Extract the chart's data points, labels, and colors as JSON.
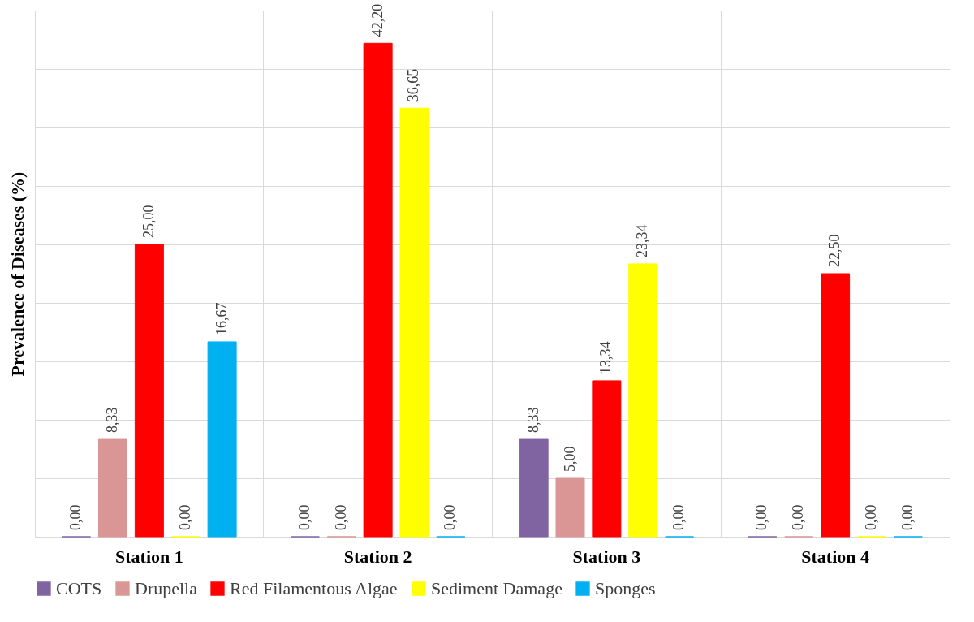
{
  "chart_data": {
    "type": "bar",
    "ylabel": "Prevalence of Diseases (%)",
    "categories": [
      "Station 1",
      "Station 2",
      "Station 3",
      "Station 4"
    ],
    "series": [
      {
        "name": "COTS",
        "color": "#8064a2",
        "values": [
          0,
          0,
          8.33,
          0
        ],
        "value_labels": [
          "0,00",
          "0,00",
          "8,33",
          "0,00"
        ]
      },
      {
        "name": "Drupella",
        "color": "#d99694",
        "values": [
          8.33,
          0,
          5,
          0
        ],
        "value_labels": [
          "8,33",
          "0,00",
          "5,00",
          "0,00"
        ]
      },
      {
        "name": "Red Filamentous Algae",
        "color": "#ff0000",
        "values": [
          25,
          42.2,
          13.34,
          22.5
        ],
        "value_labels": [
          "25,00",
          "42,20",
          "13,34",
          "22,50"
        ]
      },
      {
        "name": "Sediment Damage",
        "color": "#ffff00",
        "values": [
          0,
          36.65,
          23.34,
          0
        ],
        "value_labels": [
          "0,00",
          "36,65",
          "23,34",
          "0,00"
        ]
      },
      {
        "name": "Sponges",
        "color": "#00b0f0",
        "values": [
          16.67,
          0,
          0,
          0
        ],
        "value_labels": [
          "16,67",
          "0,00",
          "0,00",
          "0,00"
        ]
      }
    ],
    "ylim": [
      0,
      45
    ],
    "yticks": [
      {
        "value": 0,
        "label": null
      },
      {
        "value": 5,
        "label": null
      },
      {
        "value": 10,
        "label": null
      },
      {
        "value": 15,
        "label": null
      },
      {
        "value": 20,
        "label": null
      },
      {
        "value": 25,
        "label": null
      },
      {
        "value": 30,
        "label": null
      },
      {
        "value": 35,
        "label": null
      },
      {
        "value": 40,
        "label": null
      },
      {
        "value": 45,
        "label": null
      }
    ],
    "tick_labels": "x",
    "grid": true,
    "legend": "bottom"
  }
}
